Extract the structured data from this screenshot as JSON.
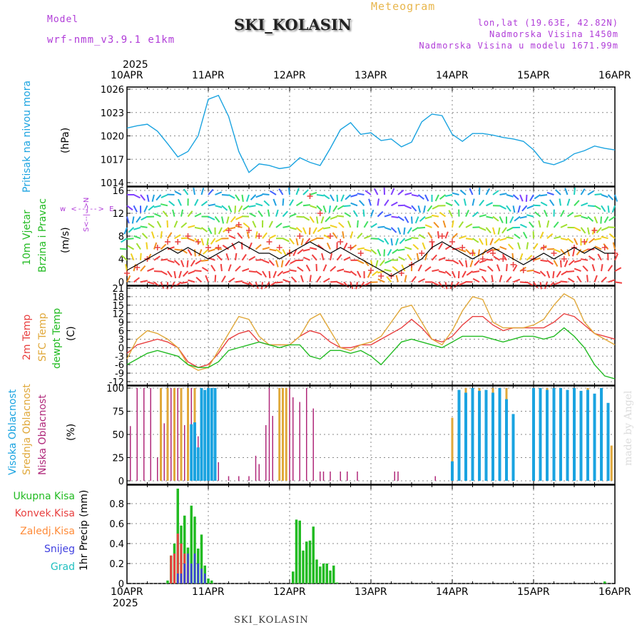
{
  "header": {
    "model_label": "Model",
    "model_name": "wrf-nmm_v3.9.1 e1km",
    "meteogram_label": "Meteogram",
    "location_title": "SKI_KOLASIN",
    "lonlat": "lon,lat (19.63E, 42.82N)",
    "elevation": "Nadmorska Visina 1450m",
    "model_elevation": "Nadmorska Visina u modelu 1671.99m"
  },
  "xaxis": {
    "year_top": "2025",
    "year_bottom": "2025",
    "ticks": [
      "10APR",
      "11APR",
      "12APR",
      "13APR",
      "14APR",
      "15APR",
      "16APR"
    ]
  },
  "footer": {
    "station": "SKI_KOLASIN",
    "credit": "made by Angel"
  },
  "colors": {
    "pressure": "#1aa3e0",
    "temp2m": "#e84040",
    "sfc": "#e0a83a",
    "dewpt": "#22bb22",
    "high": "#1aa3e0",
    "mid": "#e0a83a",
    "low": "#b0287a",
    "precip_total": "#22bb22",
    "precip_conv": "#e84040",
    "precip_frz": "#ff8c3a",
    "precip_snow": "#4040e0",
    "precip_grad": "#20c0c0"
  },
  "panels": {
    "pressure": {
      "label": "Pritisak na nivou mora",
      "unit": "(hPa)"
    },
    "wind": {
      "label1": "10m Vjetar",
      "label2": "Brzina i Pravac",
      "unit": "(m/s)",
      "compass": "w <--|--> E",
      "compass2": "S<--|-->N"
    },
    "temp": {
      "label_2m": "2m Temp",
      "label_sfc": "SFC Temp",
      "label_dew": "dewpt Temp",
      "unit": "(C)"
    },
    "cloud": {
      "label_high": "Visoka Oblacnost",
      "label_mid": "Srednja Oblacnost",
      "label_low": "Niska Oblacnost",
      "unit": "(%)"
    },
    "precip": {
      "legend": [
        "Ukupna Kisa",
        "Konvek.Kisa",
        "Zaledj.Kisa",
        "Snijeg",
        "Grad"
      ],
      "ylabel": "1hr Precip (mm)"
    }
  },
  "chart_data": [
    {
      "type": "line",
      "title": "Pritisak na nivou mora",
      "ylabel": "(hPa)",
      "ylim": [
        1014,
        1026
      ],
      "yticks": [
        1014,
        1017,
        1020,
        1023,
        1026
      ],
      "grid": true,
      "x_unit": "hours since 10APR 00",
      "x": [
        0,
        3,
        6,
        9,
        12,
        15,
        18,
        21,
        24,
        27,
        30,
        33,
        36,
        39,
        42,
        45,
        48,
        51,
        54,
        57,
        60,
        63,
        66,
        69,
        72,
        75,
        78,
        81,
        84,
        87,
        90,
        93,
        96,
        99,
        102,
        105,
        108,
        111,
        114,
        117,
        120,
        123,
        126,
        129,
        132,
        135,
        138,
        141,
        144
      ],
      "series": [
        {
          "name": "Pritisak na nivou mora",
          "values": [
            1021.0,
            1021.3,
            1021.5,
            1020.6,
            1019.0,
            1017.3,
            1018.0,
            1020.0,
            1024.7,
            1025.2,
            1022.5,
            1018.0,
            1015.3,
            1016.4,
            1016.2,
            1015.8,
            1016.0,
            1017.2,
            1016.6,
            1016.2,
            1018.4,
            1020.8,
            1021.7,
            1020.2,
            1020.4,
            1019.4,
            1019.6,
            1018.6,
            1019.2,
            1021.8,
            1022.8,
            1022.6,
            1020.2,
            1019.3,
            1020.3,
            1020.3,
            1020.1,
            1019.8,
            1019.6,
            1019.3,
            1018.2,
            1016.6,
            1016.3,
            1016.8,
            1017.7,
            1018.1,
            1018.7,
            1018.4,
            1018.2
          ]
        }
      ]
    },
    {
      "type": "line",
      "title": "10m Vjetar Brzina i Pravac",
      "ylabel": "(m/s)",
      "ylim": [
        0,
        16
      ],
      "yticks": [
        0,
        4,
        8,
        12,
        16
      ],
      "grid": true,
      "x_unit": "hours since 10APR 00",
      "x": [
        0,
        3,
        6,
        9,
        12,
        15,
        18,
        21,
        24,
        27,
        30,
        33,
        36,
        39,
        42,
        45,
        48,
        51,
        54,
        57,
        60,
        63,
        66,
        69,
        72,
        75,
        78,
        81,
        84,
        87,
        90,
        93,
        96,
        99,
        102,
        105,
        108,
        111,
        114,
        117,
        120,
        123,
        126,
        129,
        132,
        135,
        138,
        141,
        144
      ],
      "series": [
        {
          "name": "speed",
          "values": [
            2,
            3,
            4,
            5,
            6,
            5,
            6,
            5,
            4,
            5,
            6,
            7,
            6,
            5,
            5,
            4,
            5,
            6,
            7,
            6,
            5,
            6,
            5,
            4,
            3,
            2,
            1,
            2,
            3,
            4,
            6,
            7,
            6,
            5,
            4,
            5,
            6,
            5,
            4,
            3,
            4,
            5,
            4,
            5,
            6,
            5,
            6,
            5,
            5
          ]
        },
        {
          "name": "gust",
          "values": [
            1.5,
            2.5,
            4,
            6,
            7,
            7,
            8,
            7,
            6,
            6,
            9,
            10,
            9,
            8,
            7,
            6,
            5,
            8,
            15,
            12,
            8,
            7,
            6,
            5,
            2,
            1,
            1,
            1.5,
            3,
            5,
            7,
            8,
            7,
            6,
            5,
            4,
            5,
            4,
            3,
            2,
            4,
            6,
            5,
            4,
            6,
            7,
            9,
            6,
            5
          ]
        }
      ]
    },
    {
      "type": "line",
      "title": "2m Temp / SFC Temp / dewpt Temp",
      "ylabel": "(C)",
      "ylim": [
        -12,
        21
      ],
      "yticks": [
        -12,
        -9,
        -6,
        -3,
        0,
        3,
        6,
        9,
        12,
        15,
        18,
        21
      ],
      "grid": true,
      "x_unit": "hours since 10APR 00",
      "x": [
        0,
        3,
        6,
        9,
        12,
        15,
        18,
        21,
        24,
        27,
        30,
        33,
        36,
        39,
        42,
        45,
        48,
        51,
        54,
        57,
        60,
        63,
        66,
        69,
        72,
        75,
        78,
        81,
        84,
        87,
        90,
        93,
        96,
        99,
        102,
        105,
        108,
        111,
        114,
        117,
        120,
        123,
        126,
        129,
        132,
        135,
        138,
        141,
        144
      ],
      "series": [
        {
          "name": "2m Temp",
          "values": [
            -2,
            1,
            2,
            3,
            2,
            0,
            -5,
            -7,
            -6,
            -2,
            3,
            5,
            6,
            2,
            1,
            1,
            1,
            4,
            6,
            5,
            2,
            0,
            0,
            1,
            1,
            3,
            5,
            7,
            10,
            7,
            3,
            2,
            4,
            8,
            11,
            11,
            8,
            6,
            7,
            7,
            7,
            7,
            9,
            12,
            11,
            8,
            5,
            4,
            3
          ]
        },
        {
          "name": "SFC Temp",
          "values": [
            -4,
            3,
            6,
            5,
            3,
            0,
            -6,
            -8,
            -7,
            -1,
            5,
            11,
            10,
            4,
            1,
            1,
            1,
            4,
            10,
            12,
            6,
            0,
            -1,
            1,
            2,
            4,
            9,
            14,
            15,
            9,
            3,
            1,
            6,
            13,
            18,
            17,
            9,
            7,
            7,
            7,
            8,
            10,
            15,
            19,
            17,
            9,
            5,
            3,
            1
          ]
        },
        {
          "name": "dewpt Temp",
          "values": [
            -6,
            -4,
            -2,
            -1,
            -2,
            -3,
            -6,
            -7,
            -7,
            -5,
            -1,
            0,
            1,
            2,
            1,
            0,
            1,
            1,
            -3,
            -4,
            -1,
            -1,
            -2,
            -1,
            -3,
            -6,
            -2,
            2,
            3,
            2,
            1,
            0,
            2,
            4,
            4,
            4,
            3,
            2,
            3,
            4,
            4,
            3,
            4,
            7,
            4,
            0,
            -6,
            -10,
            -11
          ]
        }
      ]
    },
    {
      "type": "bar",
      "title": "Visoka / Srednja / Niska Oblacnost",
      "ylabel": "(%)",
      "ylim": [
        0,
        100
      ],
      "yticks": [
        0,
        25,
        50,
        75,
        100
      ],
      "grid": true,
      "x_unit": "hours since 10APR 00",
      "series": [
        {
          "name": "Niska Oblacnost",
          "x": [
            1,
            3,
            5,
            7,
            9,
            11,
            13,
            14,
            15,
            17,
            18,
            19,
            20,
            21,
            22,
            24,
            27,
            30,
            33,
            36,
            38,
            39,
            41,
            42,
            43,
            45,
            46,
            47,
            48,
            49,
            51,
            53,
            55,
            57,
            58,
            60,
            63,
            65,
            68,
            79,
            80,
            91
          ],
          "values": [
            59,
            100,
            100,
            100,
            25,
            62,
            100,
            70,
            100,
            60,
            70,
            100,
            97,
            48,
            100,
            100,
            20,
            5,
            5,
            5,
            27,
            18,
            60,
            100,
            70,
            76,
            98,
            100,
            100,
            90,
            85,
            100,
            78,
            10,
            10,
            10,
            10,
            10,
            10,
            10,
            10,
            5
          ]
        },
        {
          "name": "Srednja Oblacnost",
          "x": [
            10,
            12,
            14,
            16,
            18,
            20,
            22,
            45,
            46,
            47,
            96,
            100,
            104,
            108,
            112,
            120,
            124,
            128,
            132,
            136,
            140,
            143
          ],
          "values": [
            100,
            100,
            100,
            100,
            100,
            100,
            100,
            100,
            100,
            100,
            68,
            100,
            100,
            100,
            100,
            100,
            100,
            100,
            100,
            100,
            100,
            38
          ]
        },
        {
          "name": "Visoka Oblacnost",
          "x": [
            19,
            20,
            21,
            22,
            23,
            24,
            25,
            26,
            96,
            98,
            100,
            102,
            104,
            106,
            108,
            110,
            112,
            114,
            120,
            122,
            124,
            126,
            128,
            130,
            132,
            134,
            136,
            138,
            140,
            142
          ],
          "values": [
            61,
            63,
            36,
            100,
            98,
            100,
            100,
            100,
            21,
            98,
            95,
            100,
            97,
            98,
            95,
            100,
            88,
            72,
            100,
            100,
            98,
            100,
            100,
            98,
            100,
            97,
            98,
            94,
            100,
            84
          ]
        }
      ]
    },
    {
      "type": "bar",
      "title": "1hr Precip",
      "ylabel": "1hr Precip (mm)",
      "ylim": [
        0,
        0.95
      ],
      "yticks": [
        0,
        0.2,
        0.4,
        0.6,
        0.8
      ],
      "grid": true,
      "x_unit": "hours since 10APR 00",
      "series": [
        {
          "name": "Ukupna Kisa",
          "x": [
            12,
            13,
            14,
            15,
            16,
            17,
            18,
            19,
            20,
            21,
            22,
            23,
            24,
            25,
            49,
            50,
            51,
            52,
            53,
            54,
            55,
            56,
            57,
            58,
            59,
            60,
            61,
            62,
            141
          ],
          "values": [
            0.03,
            0.28,
            0.4,
            0.95,
            0.58,
            0.68,
            0.36,
            0.78,
            0.67,
            0.35,
            0.49,
            0.18,
            0.05,
            0.03,
            0.12,
            0.64,
            0.63,
            0.33,
            0.42,
            0.43,
            0.57,
            0.24,
            0.17,
            0.2,
            0.2,
            0.13,
            0.18,
            0.01,
            0.02
          ]
        },
        {
          "name": "Konvek.Kisa",
          "x": [
            13,
            14,
            15,
            16,
            17,
            18
          ],
          "values": [
            0.28,
            0.3,
            0.5,
            0.4,
            0.3,
            0.2
          ]
        },
        {
          "name": "Snijeg",
          "x": [
            15,
            16,
            17,
            18,
            19,
            20,
            21,
            22,
            23
          ],
          "values": [
            0.1,
            0.1,
            0.2,
            0.3,
            0.2,
            0.3,
            0.2,
            0.15,
            0.1
          ]
        }
      ]
    }
  ]
}
